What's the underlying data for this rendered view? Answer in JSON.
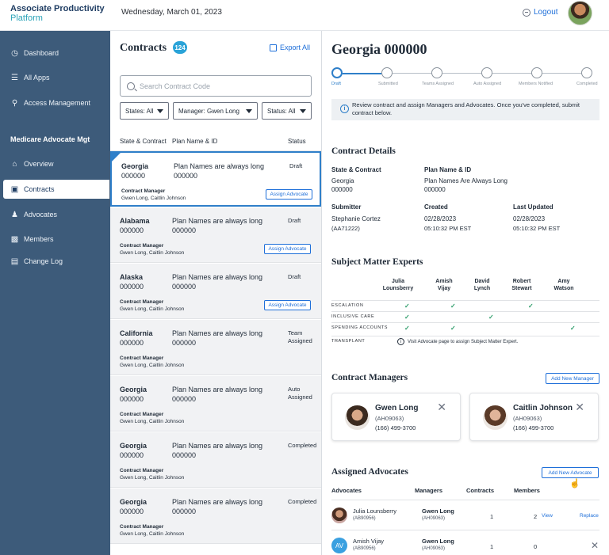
{
  "brand": {
    "line1": "Associate Productivity",
    "line2": "Platform"
  },
  "header": {
    "date": "Wednesday, March 01, 2023",
    "logout_label": "Logout"
  },
  "sidebar": {
    "items": [
      {
        "label": "Dashboard",
        "icon": "dashboard-icon"
      },
      {
        "label": "All Apps",
        "icon": "apps-icon"
      },
      {
        "label": "Access Management",
        "icon": "key-icon"
      }
    ],
    "section_title": "Medicare Advocate Mgt",
    "section_items": [
      {
        "label": "Overview",
        "icon": "home-icon"
      },
      {
        "label": "Contracts",
        "icon": "folder-icon",
        "active": true
      },
      {
        "label": "Advocates",
        "icon": "users-icon"
      },
      {
        "label": "Members",
        "icon": "id-card-icon"
      },
      {
        "label": "Change Log",
        "icon": "log-icon"
      }
    ]
  },
  "contracts": {
    "title": "Contracts",
    "count": "124",
    "export_label": "Export All",
    "search_placeholder": "Search Contract Code",
    "filters": {
      "states": "States: All",
      "manager": "Manager: Gwen Long",
      "status": "Status: All"
    },
    "columns": {
      "state": "State & Contract",
      "plan": "Plan Name & ID",
      "status": "Status"
    },
    "cm_label": "Contract Manager",
    "assign_label": "Assign Advocate",
    "rows": [
      {
        "state": "Georgia",
        "code": "000000",
        "plan": "Plan Names are always long",
        "plan_id": "000000",
        "status": "Draft",
        "managers": "Gwen Long, Caitlin Johnson"
      },
      {
        "state": "Alabama",
        "code": "000000",
        "plan": "Plan Names are always long",
        "plan_id": "000000",
        "status": "Draft",
        "managers": "Gwen Long, Caitlin Johnson"
      },
      {
        "state": "Alaska",
        "code": "000000",
        "plan": "Plan Names are always long",
        "plan_id": "000000",
        "status": "Draft",
        "managers": "Gwen Long, Caitlin Johnson"
      },
      {
        "state": "California",
        "code": "000000",
        "plan": "Plan Names are always long",
        "plan_id": "000000",
        "status": "Team Assigned",
        "managers": "Gwen Long, Caitlin Johnson"
      },
      {
        "state": "Georgia",
        "code": "000000",
        "plan": "Plan Names are always long",
        "plan_id": "000000",
        "status": "Auto Assigned",
        "managers": "Gwen Long, Caitlin Johnson"
      },
      {
        "state": "Georgia",
        "code": "000000",
        "plan": "Plan Names are always long",
        "plan_id": "000000",
        "status": "Completed",
        "managers": "Gwen Long, Caitlin Johnson"
      },
      {
        "state": "Georgia",
        "code": "000000",
        "plan": "Plan Names are always long",
        "plan_id": "000000",
        "status": "Completed",
        "managers": "Gwen Long, Caitlin Johnson"
      }
    ]
  },
  "detail": {
    "title": "Georgia 000000",
    "steps": [
      "Draft",
      "Submitted",
      "Teams Assigned",
      "Auto Assigned",
      "Members Notified",
      "Completed"
    ],
    "info_text": "Review contract and assign Managers and Advocates. Once you've completed, submit contract below.",
    "contract_details": {
      "heading": "Contract Details",
      "state_label": "State & Contract",
      "state": "Georgia",
      "state_code": "000000",
      "plan_label": "Plan Name & ID",
      "plan": "Plan Names Are Always Long",
      "plan_id": "000000",
      "submitter_label": "Submitter",
      "submitter": "Stephanie Cortez",
      "submitter_id": "(AA71222)",
      "created_label": "Created",
      "created_date": "02/28/2023",
      "created_time": "05:10:32 PM EST",
      "updated_label": "Last Updated",
      "updated_date": "02/28/2023",
      "updated_time": "05:10:32 PM EST"
    },
    "sme": {
      "heading": "Subject Matter Experts",
      "experts": [
        {
          "first": "Julia",
          "last": "Lounsberry"
        },
        {
          "first": "Amish",
          "last": "Vijay"
        },
        {
          "first": "David",
          "last": "Lynch"
        },
        {
          "first": "Robert",
          "last": "Stewart"
        },
        {
          "first": "Amy",
          "last": "Watson"
        }
      ],
      "rows": [
        {
          "label": "ESCALATION",
          "checks": [
            true,
            true,
            false,
            true,
            false
          ]
        },
        {
          "label": "INCLUSIVE CARE",
          "checks": [
            true,
            false,
            true,
            false,
            false
          ]
        },
        {
          "label": "SPENDING ACCOUNTS",
          "checks": [
            true,
            true,
            false,
            false,
            true
          ]
        }
      ],
      "transplant_label": "TRANSPLANT",
      "transplant_note": "Visit Advocate page to assign Subject Matter Expert."
    },
    "managers": {
      "heading": "Contract Managers",
      "add_label": "Add New Manager",
      "cards": [
        {
          "name": "Gwen Long",
          "id": "(AH09063)",
          "phone": "(166) 499-3700"
        },
        {
          "name": "Caitlin Johnson",
          "id": "(AH09063)",
          "phone": "(166) 499-3700"
        }
      ]
    },
    "advocates": {
      "heading": "Assigned Advocates",
      "add_label": "Add New Advocate",
      "columns": {
        "advocates": "Advocates",
        "managers": "Managers",
        "contracts": "Contracts",
        "members": "Members"
      },
      "rows": [
        {
          "name": "Julia Lounsberry",
          "id": "(AB90956)",
          "manager": "Gwen Long",
          "manager_id": "(AH09063)",
          "contracts": "1",
          "members": "2",
          "view": "View",
          "replace": "Replace"
        },
        {
          "name": "Amish Vijay",
          "initials": "AV",
          "id": "(AB90956)",
          "manager": "Gwen Long",
          "manager_id": "(AH09063)",
          "contracts": "1",
          "members": "0"
        }
      ]
    }
  },
  "colors": {
    "sidebar": "#3d5b7a",
    "accent": "#1e6fd9",
    "badge": "#2aa3d8",
    "check": "#2e9d6a"
  }
}
